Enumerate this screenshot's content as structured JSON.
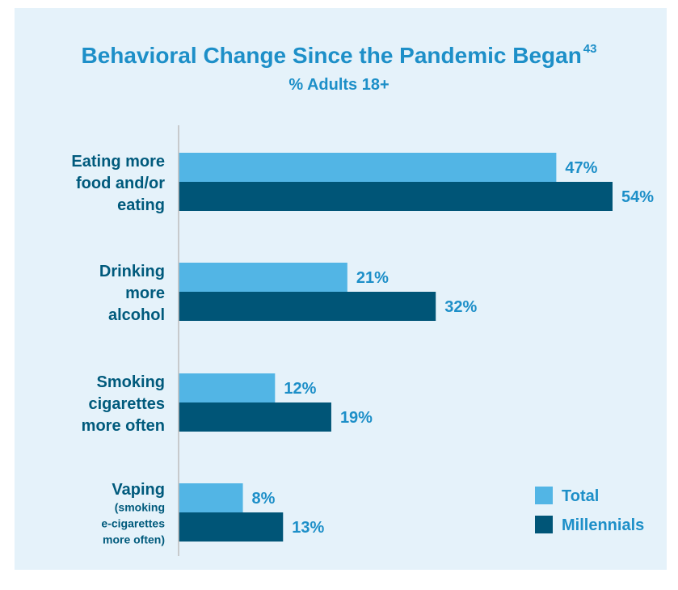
{
  "chart_data": {
    "type": "bar",
    "orientation": "horizontal",
    "title": "Behavioral Change Since the Pandemic Began",
    "title_superscript": "43",
    "subtitle": "% Adults 18+",
    "categories": [
      {
        "lines": [
          "Eating more",
          "food and/or",
          "eating"
        ],
        "small_lines": []
      },
      {
        "lines": [
          "Drinking",
          "more",
          "alcohol"
        ],
        "small_lines": []
      },
      {
        "lines": [
          "Smoking",
          "cigarettes",
          "more often"
        ],
        "small_lines": []
      },
      {
        "lines": [
          "Vaping"
        ],
        "small_lines": [
          "(smoking",
          "e-cigarettes",
          "more often)"
        ]
      }
    ],
    "series": [
      {
        "name": "Total",
        "color": "#52b5e5",
        "values": [
          47,
          21,
          12,
          8
        ],
        "labels": [
          "47%",
          "21%",
          "12%",
          "8%"
        ]
      },
      {
        "name": "Millennials",
        "color": "#005577",
        "values": [
          54,
          32,
          19,
          13
        ],
        "labels": [
          "54%",
          "32%",
          "19%",
          "13%"
        ]
      }
    ],
    "unit": "%",
    "xlim": [
      0,
      54
    ],
    "grid": false,
    "legend_position": "bottom-right"
  },
  "colors": {
    "background": "#e5f2fa",
    "title": "#1d8fc8",
    "category_text": "#005a7c",
    "axis": "#bdbdbd"
  }
}
